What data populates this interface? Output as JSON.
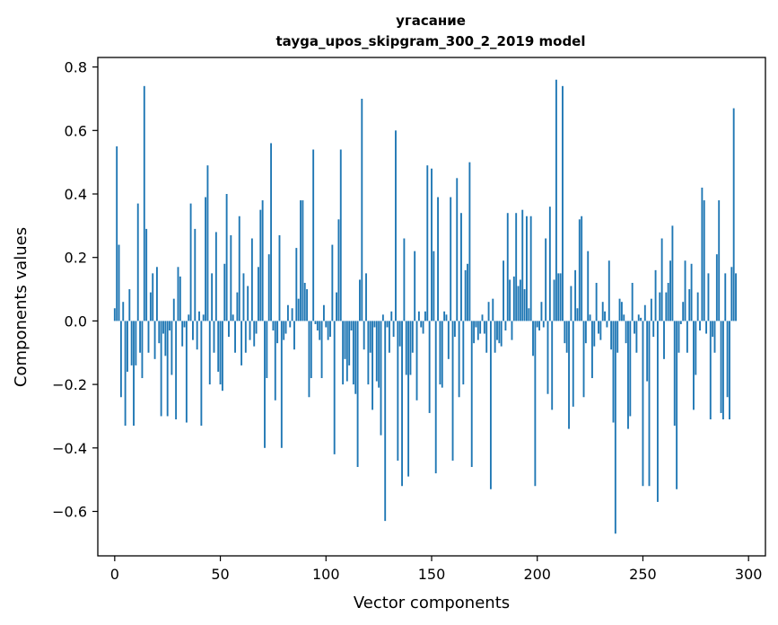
{
  "chart_data": {
    "type": "bar",
    "title": "угасание",
    "subtitle": "tayga_upos_skipgram_300_2_2019 model",
    "xlabel": "Vector components",
    "ylabel": "Components values",
    "xlim": [
      -8,
      308
    ],
    "ylim": [
      -0.74,
      0.83
    ],
    "grid": false,
    "bar_color": "#1f77b4",
    "x_ticks": [
      0,
      50,
      100,
      150,
      200,
      250,
      300
    ],
    "x_tick_labels": [
      "0",
      "50",
      "100",
      "150",
      "200",
      "250",
      "300"
    ],
    "y_ticks": [
      -0.6,
      -0.4,
      -0.2,
      0.0,
      0.2,
      0.4,
      0.6,
      0.8
    ],
    "y_tick_labels": [
      "−0.6",
      "−0.4",
      "−0.2",
      "0.0",
      "0.2",
      "0.4",
      "0.6",
      "0.8"
    ],
    "values": [
      0.04,
      0.55,
      0.24,
      -0.24,
      0.06,
      -0.33,
      -0.16,
      0.1,
      -0.14,
      -0.33,
      -0.14,
      0.37,
      -0.1,
      -0.18,
      0.74,
      0.29,
      -0.1,
      0.09,
      0.15,
      -0.12,
      0.17,
      -0.07,
      -0.3,
      -0.04,
      -0.11,
      -0.3,
      -0.03,
      -0.17,
      0.07,
      -0.31,
      0.17,
      0.14,
      -0.08,
      -0.02,
      -0.32,
      0.02,
      0.37,
      -0.06,
      0.29,
      -0.09,
      0.03,
      -0.33,
      0.02,
      0.39,
      0.49,
      -0.2,
      0.15,
      -0.1,
      0.28,
      -0.16,
      -0.2,
      -0.22,
      0.18,
      0.4,
      -0.05,
      0.27,
      0.02,
      -0.1,
      0.09,
      0.33,
      -0.14,
      0.15,
      -0.1,
      0.11,
      -0.06,
      0.26,
      -0.08,
      -0.04,
      0.17,
      0.35,
      0.38,
      -0.4,
      -0.18,
      0.21,
      0.56,
      -0.03,
      -0.25,
      -0.07,
      0.27,
      -0.4,
      -0.06,
      -0.04,
      0.05,
      -0.02,
      0.04,
      -0.09,
      0.23,
      0.07,
      0.38,
      0.38,
      0.12,
      0.1,
      -0.24,
      -0.18,
      0.54,
      -0.01,
      -0.03,
      -0.06,
      -0.18,
      0.05,
      -0.02,
      -0.06,
      -0.05,
      0.24,
      -0.42,
      0.09,
      0.32,
      0.54,
      -0.2,
      -0.12,
      -0.19,
      -0.14,
      -0.03,
      -0.2,
      -0.23,
      -0.46,
      0.13,
      0.7,
      -0.09,
      0.15,
      -0.2,
      -0.1,
      -0.28,
      -0.02,
      -0.19,
      -0.21,
      -0.36,
      0.02,
      -0.63,
      -0.02,
      -0.1,
      0.03,
      -0.05,
      0.6,
      -0.44,
      -0.08,
      -0.52,
      0.26,
      -0.17,
      -0.49,
      -0.17,
      -0.1,
      0.22,
      -0.25,
      0.03,
      -0.02,
      -0.04,
      0.03,
      0.49,
      -0.29,
      0.48,
      0.22,
      -0.48,
      0.39,
      -0.2,
      -0.21,
      0.03,
      0.02,
      -0.12,
      0.39,
      -0.44,
      -0.05,
      0.45,
      -0.24,
      0.34,
      -0.2,
      0.16,
      0.18,
      0.5,
      -0.46,
      -0.07,
      -0.02,
      -0.06,
      -0.04,
      0.02,
      -0.04,
      -0.1,
      0.06,
      -0.53,
      0.07,
      -0.1,
      -0.06,
      -0.07,
      -0.08,
      0.19,
      -0.03,
      0.34,
      0.13,
      -0.06,
      0.14,
      0.34,
      0.11,
      0.13,
      0.35,
      0.1,
      0.33,
      0.04,
      0.33,
      -0.11,
      -0.52,
      -0.02,
      -0.03,
      0.06,
      -0.02,
      0.26,
      -0.23,
      0.36,
      -0.28,
      0.13,
      0.76,
      0.15,
      0.15,
      0.74,
      -0.07,
      -0.1,
      -0.34,
      0.11,
      -0.27,
      0.16,
      0.04,
      0.32,
      0.33,
      -0.24,
      -0.07,
      0.22,
      0.02,
      -0.18,
      -0.08,
      0.12,
      -0.04,
      -0.06,
      0.06,
      0.03,
      -0.02,
      0.19,
      -0.09,
      -0.32,
      -0.67,
      -0.1,
      0.07,
      0.06,
      0.02,
      -0.07,
      -0.34,
      -0.3,
      0.12,
      -0.04,
      -0.1,
      0.02,
      0.01,
      -0.52,
      0.05,
      -0.19,
      -0.52,
      0.07,
      -0.05,
      0.16,
      -0.57,
      0.09,
      0.26,
      -0.12,
      0.09,
      0.12,
      0.19,
      0.3,
      -0.33,
      -0.53,
      -0.1,
      -0.01,
      0.06,
      0.19,
      -0.1,
      0.1,
      0.18,
      -0.28,
      -0.17,
      0.09,
      -0.03,
      0.42,
      0.38,
      -0.04,
      0.15,
      -0.31,
      -0.05,
      -0.1,
      0.21,
      0.38,
      -0.29,
      -0.31,
      0.15,
      -0.24,
      -0.31,
      0.17,
      0.67,
      0.15
    ]
  }
}
